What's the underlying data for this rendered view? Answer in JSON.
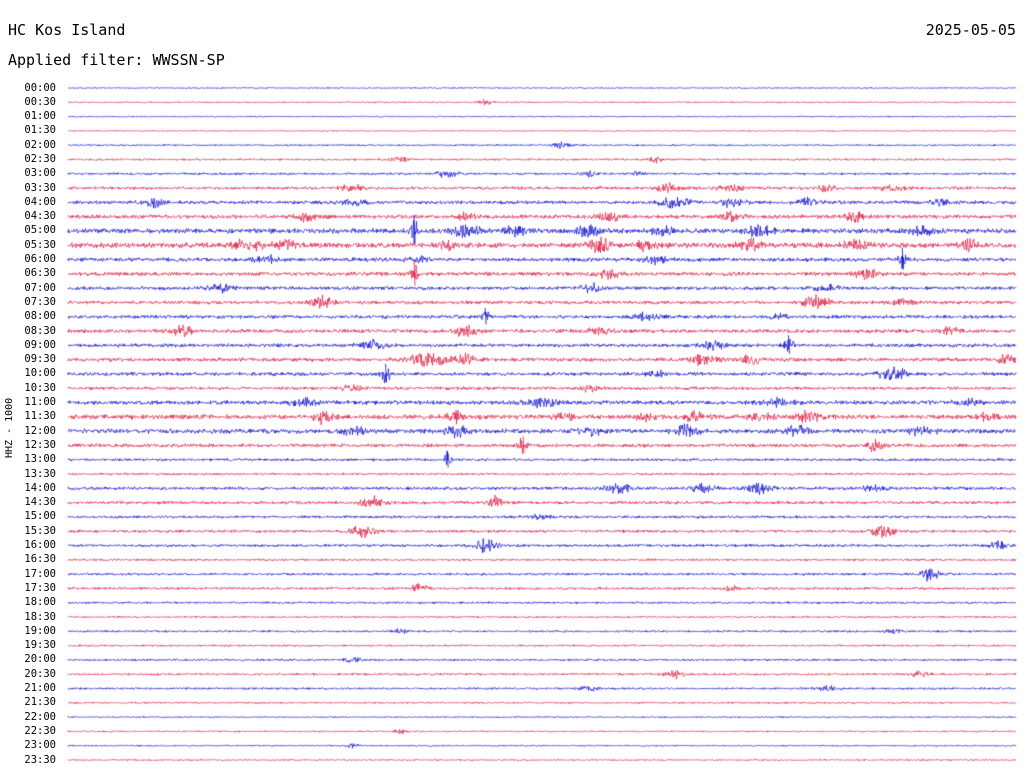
{
  "header": {
    "station": "HC Kos Island",
    "date": "2025-05-05",
    "filter": "Applied filter: WWSSN-SP"
  },
  "chart_data": {
    "type": "line",
    "title": "HC Kos Island",
    "subtitle": "Applied filter: WWSSN-SP",
    "date": "2025-05-05",
    "ylabel": "HHZ - 1000",
    "row_duration_minutes": 30,
    "grid": false,
    "legend": "none",
    "colors": {
      "blue": "#0000cd",
      "red": "#dc143c"
    },
    "rows": [
      {
        "time": "00:00",
        "color": "blue",
        "noise": 0.7,
        "events": []
      },
      {
        "time": "00:30",
        "color": "red",
        "noise": 0.8,
        "events": [
          [
            0.44,
            3,
            5
          ]
        ]
      },
      {
        "time": "01:00",
        "color": "blue",
        "noise": 0.7,
        "events": []
      },
      {
        "time": "01:30",
        "color": "red",
        "noise": 0.7,
        "events": []
      },
      {
        "time": "02:00",
        "color": "blue",
        "noise": 1.0,
        "events": [
          [
            0.52,
            3.5,
            5
          ]
        ]
      },
      {
        "time": "02:30",
        "color": "red",
        "noise": 1.2,
        "events": [
          [
            0.35,
            3,
            6
          ],
          [
            0.62,
            3,
            5
          ]
        ]
      },
      {
        "time": "03:00",
        "color": "blue",
        "noise": 1.3,
        "events": [
          [
            0.4,
            4,
            8
          ],
          [
            0.55,
            3,
            6
          ],
          [
            0.6,
            3,
            5
          ]
        ]
      },
      {
        "time": "03:30",
        "color": "red",
        "noise": 1.8,
        "events": [
          [
            0.3,
            3,
            8
          ],
          [
            0.63,
            5,
            8
          ],
          [
            0.7,
            4,
            8
          ],
          [
            0.8,
            3,
            6
          ],
          [
            0.87,
            4,
            8
          ]
        ]
      },
      {
        "time": "04:00",
        "color": "blue",
        "noise": 2.0,
        "events": [
          [
            0.09,
            5,
            6
          ],
          [
            0.3,
            3,
            8
          ],
          [
            0.64,
            6,
            10
          ],
          [
            0.7,
            5,
            8
          ],
          [
            0.78,
            4,
            8
          ],
          [
            0.92,
            3,
            6
          ]
        ]
      },
      {
        "time": "04:30",
        "color": "red",
        "noise": 2.2,
        "events": [
          [
            0.25,
            4,
            8
          ],
          [
            0.42,
            4,
            6
          ],
          [
            0.57,
            5,
            8
          ],
          [
            0.7,
            4,
            8
          ],
          [
            0.83,
            5,
            8
          ]
        ]
      },
      {
        "time": "05:00",
        "color": "blue",
        "noise": 2.8,
        "events": [
          [
            0.365,
            16,
            2.5
          ],
          [
            0.42,
            6,
            10
          ],
          [
            0.47,
            5,
            8
          ],
          [
            0.55,
            6,
            8
          ],
          [
            0.63,
            5,
            8
          ],
          [
            0.73,
            6,
            8
          ],
          [
            0.9,
            4,
            8
          ]
        ]
      },
      {
        "time": "05:30",
        "color": "red",
        "noise": 3.0,
        "events": [
          [
            0.19,
            6,
            10
          ],
          [
            0.23,
            5,
            8
          ],
          [
            0.4,
            4,
            8
          ],
          [
            0.56,
            7,
            8
          ],
          [
            0.61,
            5,
            8
          ],
          [
            0.72,
            5,
            8
          ],
          [
            0.83,
            5,
            8
          ],
          [
            0.95,
            5,
            6
          ]
        ]
      },
      {
        "time": "06:00",
        "color": "blue",
        "noise": 2.2,
        "events": [
          [
            0.21,
            4,
            8
          ],
          [
            0.37,
            4,
            8
          ],
          [
            0.62,
            4,
            8
          ],
          [
            0.88,
            12,
            2.5
          ]
        ]
      },
      {
        "time": "06:30",
        "color": "red",
        "noise": 2.2,
        "events": [
          [
            0.365,
            14,
            2.5
          ],
          [
            0.57,
            4,
            8
          ],
          [
            0.84,
            6,
            8
          ]
        ]
      },
      {
        "time": "07:00",
        "color": "blue",
        "noise": 2.0,
        "events": [
          [
            0.16,
            4,
            8
          ],
          [
            0.55,
            5,
            8
          ],
          [
            0.8,
            4,
            8
          ]
        ]
      },
      {
        "time": "07:30",
        "color": "red",
        "noise": 2.0,
        "events": [
          [
            0.27,
            7,
            8
          ],
          [
            0.79,
            8,
            8
          ],
          [
            0.88,
            4,
            8
          ]
        ]
      },
      {
        "time": "08:00",
        "color": "blue",
        "noise": 2.0,
        "events": [
          [
            0.44,
            9,
            3
          ],
          [
            0.61,
            4,
            8
          ],
          [
            0.75,
            3,
            6
          ]
        ]
      },
      {
        "time": "08:30",
        "color": "red",
        "noise": 2.2,
        "events": [
          [
            0.12,
            5,
            8
          ],
          [
            0.42,
            6,
            8
          ],
          [
            0.56,
            4,
            8
          ],
          [
            0.93,
            4,
            6
          ]
        ]
      },
      {
        "time": "09:00",
        "color": "blue",
        "noise": 2.0,
        "events": [
          [
            0.32,
            5,
            8
          ],
          [
            0.68,
            4,
            8
          ],
          [
            0.76,
            10,
            3
          ]
        ]
      },
      {
        "time": "09:30",
        "color": "red",
        "noise": 2.2,
        "events": [
          [
            0.38,
            8,
            12
          ],
          [
            0.42,
            6,
            8
          ],
          [
            0.67,
            5,
            8
          ],
          [
            0.72,
            6,
            6
          ],
          [
            0.99,
            6,
            5
          ]
        ]
      },
      {
        "time": "10:00",
        "color": "blue",
        "noise": 2.0,
        "events": [
          [
            0.335,
            10,
            3
          ],
          [
            0.62,
            3,
            8
          ],
          [
            0.87,
            7,
            10
          ]
        ]
      },
      {
        "time": "10:30",
        "color": "red",
        "noise": 1.8,
        "events": [
          [
            0.3,
            3,
            8
          ],
          [
            0.55,
            3,
            8
          ]
        ]
      },
      {
        "time": "11:00",
        "color": "blue",
        "noise": 2.4,
        "events": [
          [
            0.25,
            4,
            10
          ],
          [
            0.5,
            4,
            10
          ],
          [
            0.75,
            4,
            10
          ],
          [
            0.95,
            4,
            8
          ]
        ]
      },
      {
        "time": "11:30",
        "color": "red",
        "noise": 2.6,
        "events": [
          [
            0.27,
            6,
            8
          ],
          [
            0.41,
            7,
            6
          ],
          [
            0.52,
            5,
            8
          ],
          [
            0.61,
            5,
            8
          ],
          [
            0.66,
            5,
            8
          ],
          [
            0.73,
            5,
            8
          ],
          [
            0.78,
            5,
            8
          ],
          [
            0.97,
            4,
            6
          ]
        ]
      },
      {
        "time": "12:00",
        "color": "blue",
        "noise": 2.6,
        "events": [
          [
            0.3,
            6,
            8
          ],
          [
            0.41,
            6,
            8
          ],
          [
            0.55,
            5,
            8
          ],
          [
            0.65,
            6,
            8
          ],
          [
            0.77,
            6,
            8
          ],
          [
            0.9,
            4,
            8
          ]
        ]
      },
      {
        "time": "12:30",
        "color": "red",
        "noise": 2.0,
        "events": [
          [
            0.48,
            9,
            3
          ],
          [
            0.85,
            6,
            6
          ]
        ]
      },
      {
        "time": "13:00",
        "color": "blue",
        "noise": 1.5,
        "events": [
          [
            0.4,
            9,
            2.5
          ]
        ]
      },
      {
        "time": "13:30",
        "color": "red",
        "noise": 1.3,
        "events": []
      },
      {
        "time": "14:00",
        "color": "blue",
        "noise": 1.8,
        "events": [
          [
            0.58,
            6,
            8
          ],
          [
            0.67,
            5,
            8
          ],
          [
            0.73,
            5,
            8
          ],
          [
            0.85,
            4,
            6
          ]
        ]
      },
      {
        "time": "14:30",
        "color": "red",
        "noise": 1.8,
        "events": [
          [
            0.32,
            6,
            8
          ],
          [
            0.45,
            8,
            4
          ]
        ]
      },
      {
        "time": "15:00",
        "color": "blue",
        "noise": 1.5,
        "events": [
          [
            0.5,
            2,
            10
          ]
        ]
      },
      {
        "time": "15:30",
        "color": "red",
        "noise": 1.6,
        "events": [
          [
            0.31,
            7,
            8
          ],
          [
            0.86,
            7,
            8
          ]
        ]
      },
      {
        "time": "16:00",
        "color": "blue",
        "noise": 1.6,
        "events": [
          [
            0.44,
            7,
            8
          ],
          [
            0.98,
            6,
            5
          ]
        ]
      },
      {
        "time": "16:30",
        "color": "red",
        "noise": 1.3,
        "events": []
      },
      {
        "time": "17:00",
        "color": "blue",
        "noise": 1.4,
        "events": [
          [
            0.91,
            11,
            5
          ]
        ]
      },
      {
        "time": "17:30",
        "color": "red",
        "noise": 1.5,
        "events": [
          [
            0.37,
            4,
            6
          ],
          [
            0.7,
            3,
            6
          ]
        ]
      },
      {
        "time": "18:00",
        "color": "blue",
        "noise": 1.2,
        "events": []
      },
      {
        "time": "18:30",
        "color": "red",
        "noise": 1.1,
        "events": []
      },
      {
        "time": "19:00",
        "color": "blue",
        "noise": 1.2,
        "events": [
          [
            0.35,
            2.5,
            6
          ],
          [
            0.87,
            3,
            6
          ]
        ]
      },
      {
        "time": "19:30",
        "color": "red",
        "noise": 1.1,
        "events": []
      },
      {
        "time": "20:00",
        "color": "blue",
        "noise": 1.2,
        "events": [
          [
            0.3,
            2.5,
            6
          ]
        ]
      },
      {
        "time": "20:30",
        "color": "red",
        "noise": 1.3,
        "events": [
          [
            0.64,
            5,
            6
          ],
          [
            0.9,
            4,
            6
          ]
        ]
      },
      {
        "time": "21:00",
        "color": "blue",
        "noise": 1.2,
        "events": [
          [
            0.55,
            2.5,
            6
          ],
          [
            0.8,
            3,
            6
          ]
        ]
      },
      {
        "time": "21:30",
        "color": "red",
        "noise": 1.0,
        "events": []
      },
      {
        "time": "22:00",
        "color": "blue",
        "noise": 0.8,
        "events": []
      },
      {
        "time": "22:30",
        "color": "red",
        "noise": 0.9,
        "events": [
          [
            0.35,
            2,
            5
          ]
        ]
      },
      {
        "time": "23:00",
        "color": "blue",
        "noise": 0.8,
        "events": [
          [
            0.3,
            2,
            5
          ]
        ]
      },
      {
        "time": "23:30",
        "color": "red",
        "noise": 0.9,
        "events": []
      }
    ]
  }
}
